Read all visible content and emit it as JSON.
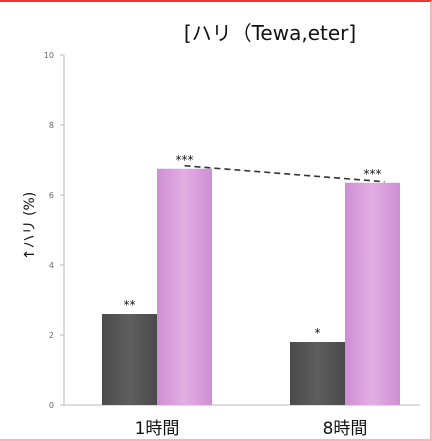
{
  "chart_data": {
    "type": "bar",
    "title": "[ハリ（Tewa,eter]",
    "ylabel": "↑ハリ (%)",
    "xlabel": "",
    "ylim": [
      0,
      10
    ],
    "yticks": [
      "0",
      "2",
      "4",
      "6",
      "8",
      "10"
    ],
    "ytick_values": [
      0,
      2,
      4,
      6,
      8,
      10
    ],
    "grid": false,
    "legend": "none",
    "categories": [
      "1時間",
      "8時間"
    ],
    "series": [
      {
        "color": "#555555",
        "values": [
          2.6,
          1.8
        ],
        "annotations": [
          "**",
          "*"
        ]
      },
      {
        "color": "#d9a0dc",
        "values": [
          6.75,
          6.35
        ],
        "annotations": [
          "***",
          "***"
        ]
      }
    ],
    "trend_line": {
      "series_index": 1,
      "style": "dashed",
      "color": "#333333"
    }
  }
}
